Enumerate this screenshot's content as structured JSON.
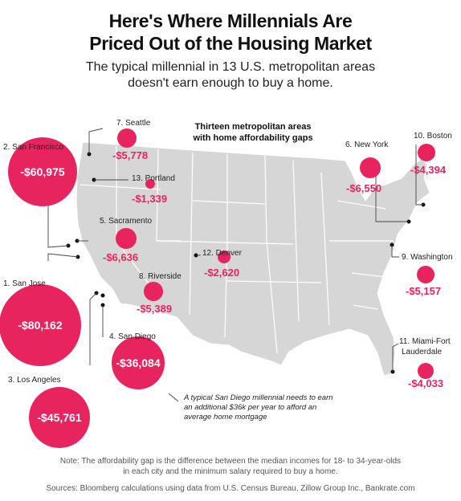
{
  "header": {
    "title_line1": "Here's Where Millennials Are",
    "title_line2": "Priced Out of the Housing Market",
    "subtitle_line1": "The typical millennial in 13 U.S. metropolitan areas",
    "subtitle_line2": "doesn't earn enough to buy a home."
  },
  "map": {
    "legend_line1": "Thirteen metropolitan areas",
    "legend_line2": "with home affordability gaps",
    "accent_color": "#e8245f",
    "land_color": "#d6d6d6",
    "cities": [
      {
        "label": "1. San Jose",
        "value": "-$80,162"
      },
      {
        "label": "2. San Francisco",
        "value": "-$60,975"
      },
      {
        "label": "3. Los Angeles",
        "value": "-$45,761"
      },
      {
        "label": "4. San Diego",
        "value": "-$36,084"
      },
      {
        "label": "5. Sacramento",
        "value": "-$6,636"
      },
      {
        "label": "6. New York",
        "value": "-$6,550"
      },
      {
        "label": "7. Seattle",
        "value": "-$5,778"
      },
      {
        "label": "8. Riverside",
        "value": "-$5,389"
      },
      {
        "label": "9. Washington",
        "value": "-$5,157"
      },
      {
        "label": "10. Boston",
        "value": "-$4,394"
      },
      {
        "label": "11. Miami-Fort",
        "label_line2": "Lauderdale",
        "value": "-$4,033"
      },
      {
        "label": "12. Denver",
        "value": "-$2,620"
      },
      {
        "label": "13. Portland",
        "value": "-$1,339"
      }
    ],
    "annotation": {
      "line1": "A typical San Diego millennial needs to earn",
      "line2": "an additional $36k per year to afford an",
      "line3": "average home mortgage"
    }
  },
  "footer": {
    "note_line1": "Note: The affordability gap is the difference between the median incomes for 18- to 34-year-olds",
    "note_line2": "in each city and the minimum salary required to buy a home.",
    "sources": "Sources: Bloomberg calculations using data from U.S. Census Bureau, Zillow Group Inc., Bankrate.com"
  }
}
